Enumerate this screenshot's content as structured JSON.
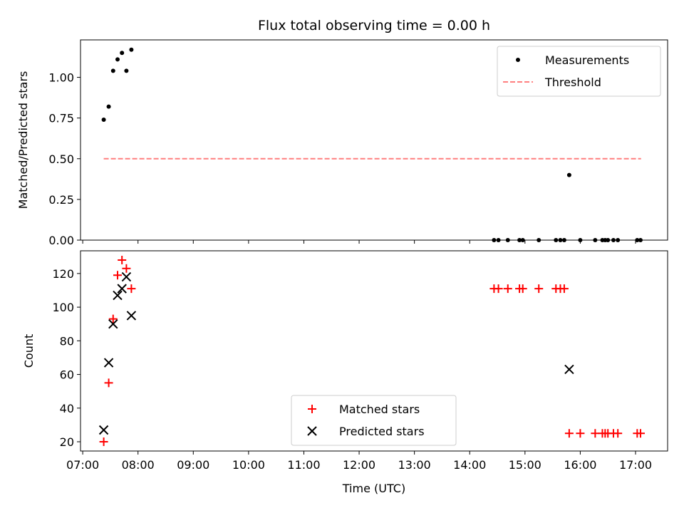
{
  "title": "Flux total observing time = 0.00 h",
  "chart_data": [
    {
      "type": "scatter",
      "ylabel": "Matched/Predicted stars",
      "ylim": [
        0,
        1.23
      ],
      "yticks": [
        "0.00",
        "0.25",
        "0.50",
        "0.75",
        "1.00"
      ],
      "xlim": [
        6.96,
        17.58
      ],
      "legend": {
        "placement": "top-right"
      },
      "threshold": {
        "name": "Threshold",
        "value": 0.5,
        "x_range": [
          7.38,
          17.1
        ],
        "color": "#ff7f7f"
      },
      "series": [
        {
          "name": "Measurements",
          "color": "#000000",
          "x": [
            7.38,
            7.47,
            7.55,
            7.63,
            7.71,
            7.79,
            7.88,
            14.44,
            14.52,
            14.69,
            14.9,
            14.96,
            15.25,
            15.56,
            15.64,
            15.71,
            15.8,
            16.0,
            16.27,
            16.4,
            16.45,
            16.5,
            16.6,
            16.68,
            17.03,
            17.09
          ],
          "y": [
            0.74,
            0.82,
            1.04,
            1.11,
            1.15,
            1.04,
            1.17,
            0,
            0,
            0,
            0,
            0,
            0,
            0,
            0,
            0,
            0.4,
            0,
            0,
            0,
            0,
            0,
            0,
            0,
            0,
            0
          ]
        }
      ]
    },
    {
      "type": "scatter",
      "xlabel": "Time (UTC)",
      "ylabel": "Count",
      "ylim": [
        14.5,
        133.5
      ],
      "yticks": [
        "20",
        "40",
        "60",
        "80",
        "100",
        "120"
      ],
      "xlim": [
        6.96,
        17.58
      ],
      "xticks": [
        "07:00",
        "08:00",
        "09:00",
        "10:00",
        "11:00",
        "12:00",
        "13:00",
        "14:00",
        "15:00",
        "16:00",
        "17:00"
      ],
      "legend": {
        "placement": "bottom-center"
      },
      "series": [
        {
          "name": "Matched stars",
          "marker": "plus",
          "color": "#ff0000",
          "x": [
            7.38,
            7.47,
            7.55,
            7.63,
            7.71,
            7.79,
            7.88,
            14.44,
            14.52,
            14.69,
            14.9,
            14.96,
            15.25,
            15.56,
            15.64,
            15.71,
            15.8,
            16.0,
            16.27,
            16.4,
            16.45,
            16.5,
            16.6,
            16.68,
            17.03,
            17.09
          ],
          "y": [
            20,
            55,
            93,
            119,
            128,
            123,
            111,
            111,
            111,
            111,
            111,
            111,
            111,
            111,
            111,
            111,
            25,
            25,
            25,
            25,
            25,
            25,
            25,
            25,
            25,
            25
          ]
        },
        {
          "name": "Predicted stars",
          "marker": "x",
          "color": "#000000",
          "x": [
            7.38,
            7.47,
            7.55,
            7.63,
            7.71,
            7.79,
            7.88,
            15.8
          ],
          "y": [
            27,
            67,
            90,
            107,
            111,
            118,
            95,
            63
          ]
        }
      ]
    }
  ]
}
